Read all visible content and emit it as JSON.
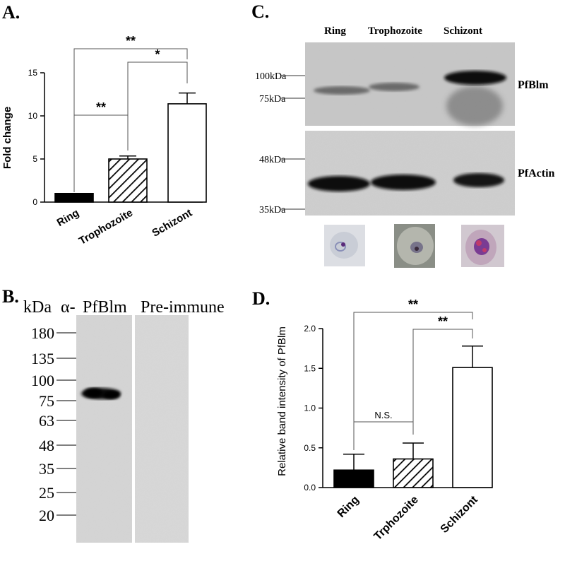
{
  "panels": {
    "a": "A.",
    "b": "B.",
    "c": "C.",
    "d": "D."
  },
  "chart_data": [
    {
      "panel": "A",
      "type": "bar",
      "categories": [
        "Ring",
        "Trophozoite",
        "Schizont"
      ],
      "values": [
        1.0,
        5.0,
        11.4
      ],
      "errors": [
        0,
        0.35,
        1.25
      ],
      "ylabel": "Fold change",
      "ylim": [
        0,
        15
      ],
      "yticks": [
        0,
        5,
        10,
        15
      ],
      "grid": false,
      "significance": [
        {
          "from": "Ring",
          "to": "Trophozoite",
          "label": "**"
        },
        {
          "from": "Trophozoite",
          "to": "Schizont",
          "label": "*"
        },
        {
          "from": "Ring",
          "to": "Schizont",
          "label": "**"
        }
      ]
    },
    {
      "panel": "D",
      "type": "bar",
      "categories": [
        "Ring",
        "Trphozoite",
        "Schizont"
      ],
      "values": [
        0.22,
        0.36,
        1.51
      ],
      "errors": [
        0.2,
        0.2,
        0.27
      ],
      "ylabel": "Relative band intensity of PfBlm",
      "ylim": [
        0,
        2.0
      ],
      "yticks": [
        "0.0",
        "0.5",
        "1.0",
        "1.5",
        "2.0"
      ],
      "grid": false,
      "significance": [
        {
          "from": "Ring",
          "to": "Trphozoite",
          "label": "N.S."
        },
        {
          "from": "Trphozoite",
          "to": "Schizont",
          "label": "**"
        },
        {
          "from": "Ring",
          "to": "Schizont",
          "label": "**"
        }
      ]
    }
  ],
  "blot_b": {
    "kda_label": "kDa",
    "alpha_label": "α-",
    "lane_labels": [
      "PfBlm",
      "Pre-immune"
    ],
    "markers": [
      "180",
      "135",
      "100",
      "75",
      "63",
      "48",
      "35",
      "25",
      "20"
    ]
  },
  "blot_c": {
    "stage_labels": [
      "Ring",
      "Trophozoite",
      "Schizont"
    ],
    "top_markers": [
      "100kDa",
      "75kDa"
    ],
    "bottom_markers": [
      "48kDa",
      "35kDa"
    ],
    "top_protein": "PfBlm",
    "bottom_protein": "PfActin"
  }
}
